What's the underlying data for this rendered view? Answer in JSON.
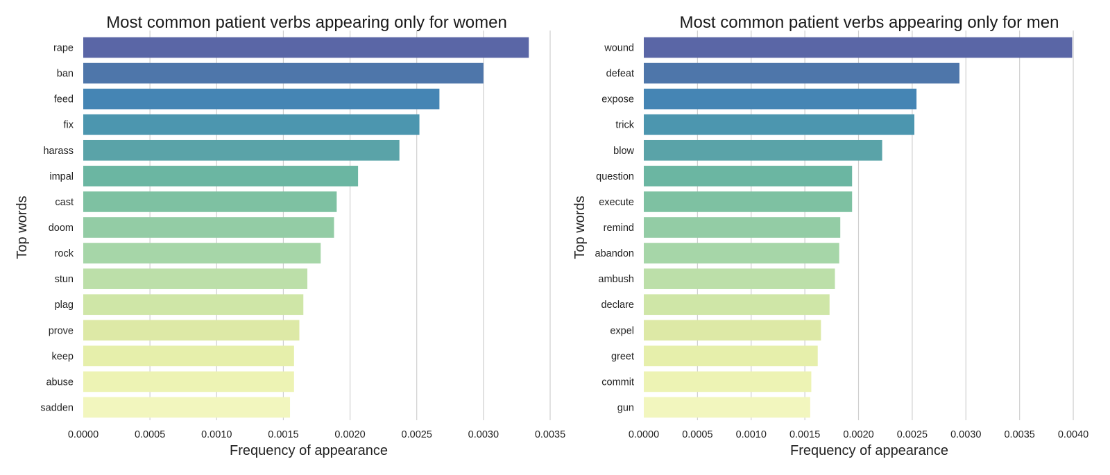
{
  "chart_data": [
    {
      "type": "bar",
      "orientation": "horizontal",
      "title": "Most common patient verbs appearing only for women",
      "xlabel": "Frequency of appearance",
      "ylabel": "Top words",
      "xlim": [
        0,
        0.0035
      ],
      "xticks": [
        "0.0000",
        "0.0005",
        "0.0010",
        "0.0015",
        "0.0020",
        "0.0025",
        "0.0030",
        "0.0035"
      ],
      "grid": "vertical",
      "categories": [
        "rape",
        "ban",
        "feed",
        "fix",
        "harass",
        "impal",
        "cast",
        "doom",
        "rock",
        "stun",
        "plag",
        "prove",
        "keep",
        "abuse",
        "sadden"
      ],
      "values": [
        0.00334,
        0.003,
        0.00267,
        0.00252,
        0.00237,
        0.00206,
        0.0019,
        0.00188,
        0.00178,
        0.00168,
        0.00165,
        0.00162,
        0.00158,
        0.00158,
        0.00155
      ],
      "colormap": "YlGnBu_r",
      "colors": [
        "#5a66a6",
        "#4e76aa",
        "#4585b4",
        "#4c96af",
        "#5aa3a8",
        "#6bb6a2",
        "#7ec1a2",
        "#93cca5",
        "#a6d6a8",
        "#bcdfa9",
        "#cfe6a7",
        "#dde9a6",
        "#e6efab",
        "#edf3b4",
        "#f2f6be"
      ]
    },
    {
      "type": "bar",
      "orientation": "horizontal",
      "title": "Most common patient verbs appearing only for men",
      "xlabel": "Frequency of appearance",
      "ylabel": "Top words",
      "xlim": [
        0,
        0.0042
      ],
      "xticks": [
        "0.0000",
        "0.0005",
        "0.0010",
        "0.0015",
        "0.0020",
        "0.0025",
        "0.0030",
        "0.0035",
        "0.0040"
      ],
      "grid": "vertical",
      "categories": [
        "wound",
        "defeat",
        "expose",
        "trick",
        "blow",
        "question",
        "execute",
        "remind",
        "abandon",
        "ambush",
        "declare",
        "expel",
        "greet",
        "commit",
        "gun"
      ],
      "values": [
        0.00399,
        0.00294,
        0.00254,
        0.00252,
        0.00222,
        0.00194,
        0.00194,
        0.00183,
        0.00182,
        0.00178,
        0.00173,
        0.00165,
        0.00162,
        0.00156,
        0.00155
      ],
      "colormap": "YlGnBu_r",
      "colors": [
        "#5a66a6",
        "#4e76aa",
        "#4585b4",
        "#4c96af",
        "#5aa3a8",
        "#6bb6a2",
        "#7ec1a2",
        "#93cca5",
        "#a6d6a8",
        "#bcdfa9",
        "#cfe6a7",
        "#dde9a6",
        "#e6efab",
        "#edf3b4",
        "#f2f6be"
      ]
    }
  ]
}
